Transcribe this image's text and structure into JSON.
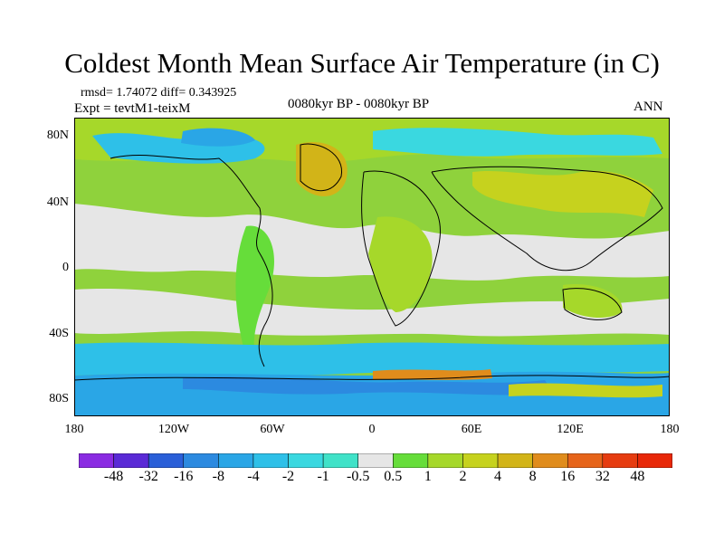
{
  "title": "Coldest Month Mean Surface Air Temperature (in C)",
  "stats": "rmsd= 1.74072 diff= 0.343925",
  "experiment": "Expt = tevtM1-teixM",
  "period": "0080kyr BP - 0080kyr BP",
  "season": "ANN",
  "lat_labels": [
    "80N",
    "40N",
    "0",
    "40S",
    "80S"
  ],
  "lon_labels": [
    "180",
    "120W",
    "60W",
    "0",
    "60E",
    "120E",
    "180"
  ],
  "colorbar": {
    "labels": [
      "-48",
      "-32",
      "-16",
      "-8",
      "-4",
      "-2",
      "-1",
      "-0.5",
      "0.5",
      "1",
      "2",
      "4",
      "8",
      "16",
      "32",
      "48"
    ],
    "colors": [
      "#8a2be2",
      "#5a2ad6",
      "#2a5fd8",
      "#2c8ae0",
      "#2aa6e6",
      "#2ec0e8",
      "#3ad8e0",
      "#40e2c8",
      "#e6e6e6",
      "#66dd3a",
      "#a6d82a",
      "#c6d21e",
      "#d2b418",
      "#e08c1c",
      "#e6641a",
      "#e63c10",
      "#e82808"
    ]
  }
}
